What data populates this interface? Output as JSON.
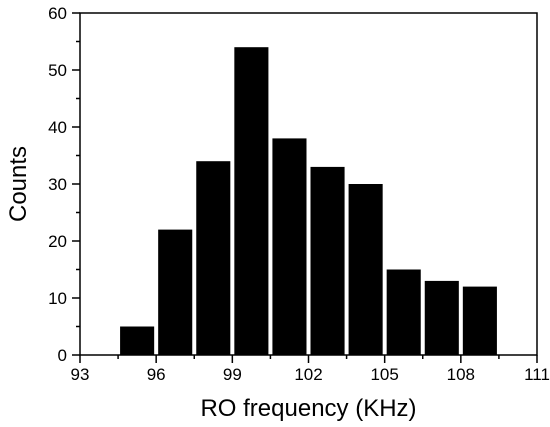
{
  "chart_data": {
    "type": "bar",
    "xlabel": "RO frequency (KHz)",
    "ylabel": "Counts",
    "xlim": [
      93,
      111
    ],
    "ylim": [
      0,
      60
    ],
    "x_ticks": [
      93,
      96,
      99,
      102,
      105,
      108,
      111
    ],
    "y_ticks": [
      0,
      10,
      20,
      30,
      40,
      50,
      60
    ],
    "bin_width": 1.5,
    "bins": [
      {
        "start": 94.5,
        "end": 96.0,
        "value": 5
      },
      {
        "start": 96.0,
        "end": 97.5,
        "value": 22
      },
      {
        "start": 97.5,
        "end": 99.0,
        "value": 34
      },
      {
        "start": 99.0,
        "end": 100.5,
        "value": 54
      },
      {
        "start": 100.5,
        "end": 102.0,
        "value": 38
      },
      {
        "start": 102.0,
        "end": 103.5,
        "value": 33
      },
      {
        "start": 103.5,
        "end": 105.0,
        "value": 30
      },
      {
        "start": 105.0,
        "end": 106.5,
        "value": 15
      },
      {
        "start": 106.5,
        "end": 108.0,
        "value": 13
      },
      {
        "start": 108.0,
        "end": 109.5,
        "value": 12
      }
    ],
    "bar_color": "#000000",
    "grid": false,
    "frame": "box"
  }
}
